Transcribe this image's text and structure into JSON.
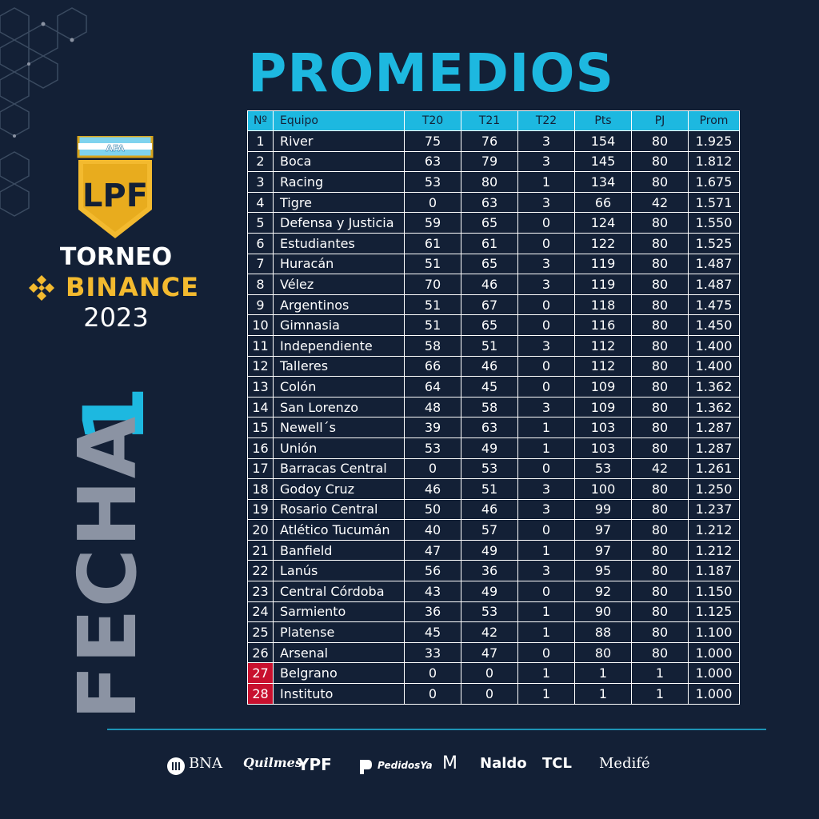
{
  "header": {
    "title": "PROMEDIOS"
  },
  "brand": {
    "afa_label": "AFA",
    "lpf_label": "LPF",
    "torneo": "TORNEO",
    "binance": "BINANCE",
    "year": "2023",
    "fecha_word": "FECHA",
    "fecha_number": "1",
    "colors": {
      "accent": "#1db8e0",
      "gold": "#f3ba2f",
      "background": "#132036",
      "relegation": "#c8102e",
      "muted": "#8b93a3"
    }
  },
  "table": {
    "columns": [
      "Nº",
      "Equipo",
      "T20",
      "T21",
      "T22",
      "Pts",
      "PJ",
      "Prom"
    ],
    "rows": [
      {
        "pos": "1",
        "team": "River",
        "t20": "75",
        "t21": "76",
        "t22": "3",
        "pts": "154",
        "pj": "80",
        "prom": "1.925",
        "highlight": false
      },
      {
        "pos": "2",
        "team": "Boca",
        "t20": "63",
        "t21": "79",
        "t22": "3",
        "pts": "145",
        "pj": "80",
        "prom": "1.812",
        "highlight": false
      },
      {
        "pos": "3",
        "team": "Racing",
        "t20": "53",
        "t21": "80",
        "t22": "1",
        "pts": "134",
        "pj": "80",
        "prom": "1.675",
        "highlight": false
      },
      {
        "pos": "4",
        "team": "Tigre",
        "t20": "0",
        "t21": "63",
        "t22": "3",
        "pts": "66",
        "pj": "42",
        "prom": "1.571",
        "highlight": false
      },
      {
        "pos": "5",
        "team": "Defensa y Justicia",
        "t20": "59",
        "t21": "65",
        "t22": "0",
        "pts": "124",
        "pj": "80",
        "prom": "1.550",
        "highlight": false
      },
      {
        "pos": "6",
        "team": "Estudiantes",
        "t20": "61",
        "t21": "61",
        "t22": "0",
        "pts": "122",
        "pj": "80",
        "prom": "1.525",
        "highlight": false
      },
      {
        "pos": "7",
        "team": "Huracán",
        "t20": "51",
        "t21": "65",
        "t22": "3",
        "pts": "119",
        "pj": "80",
        "prom": "1.487",
        "highlight": false
      },
      {
        "pos": "8",
        "team": "Vélez",
        "t20": "70",
        "t21": "46",
        "t22": "3",
        "pts": "119",
        "pj": "80",
        "prom": "1.487",
        "highlight": false
      },
      {
        "pos": "9",
        "team": "Argentinos",
        "t20": "51",
        "t21": "67",
        "t22": "0",
        "pts": "118",
        "pj": "80",
        "prom": "1.475",
        "highlight": false
      },
      {
        "pos": "10",
        "team": "Gimnasia",
        "t20": "51",
        "t21": "65",
        "t22": "0",
        "pts": "116",
        "pj": "80",
        "prom": "1.450",
        "highlight": false
      },
      {
        "pos": "11",
        "team": "Independiente",
        "t20": "58",
        "t21": "51",
        "t22": "3",
        "pts": "112",
        "pj": "80",
        "prom": "1.400",
        "highlight": false
      },
      {
        "pos": "12",
        "team": "Talleres",
        "t20": "66",
        "t21": "46",
        "t22": "0",
        "pts": "112",
        "pj": "80",
        "prom": "1.400",
        "highlight": false
      },
      {
        "pos": "13",
        "team": "Colón",
        "t20": "64",
        "t21": "45",
        "t22": "0",
        "pts": "109",
        "pj": "80",
        "prom": "1.362",
        "highlight": false
      },
      {
        "pos": "14",
        "team": "San Lorenzo",
        "t20": "48",
        "t21": "58",
        "t22": "3",
        "pts": "109",
        "pj": "80",
        "prom": "1.362",
        "highlight": false
      },
      {
        "pos": "15",
        "team": "Newell´s",
        "t20": "39",
        "t21": "63",
        "t22": "1",
        "pts": "103",
        "pj": "80",
        "prom": "1.287",
        "highlight": false
      },
      {
        "pos": "16",
        "team": "Unión",
        "t20": "53",
        "t21": "49",
        "t22": "1",
        "pts": "103",
        "pj": "80",
        "prom": "1.287",
        "highlight": false
      },
      {
        "pos": "17",
        "team": "Barracas Central",
        "t20": "0",
        "t21": "53",
        "t22": "0",
        "pts": "53",
        "pj": "42",
        "prom": "1.261",
        "highlight": false
      },
      {
        "pos": "18",
        "team": "Godoy Cruz",
        "t20": "46",
        "t21": "51",
        "t22": "3",
        "pts": "100",
        "pj": "80",
        "prom": "1.250",
        "highlight": false
      },
      {
        "pos": "19",
        "team": "Rosario Central",
        "t20": "50",
        "t21": "46",
        "t22": "3",
        "pts": "99",
        "pj": "80",
        "prom": "1.237",
        "highlight": false
      },
      {
        "pos": "20",
        "team": "Atlético Tucumán",
        "t20": "40",
        "t21": "57",
        "t22": "0",
        "pts": "97",
        "pj": "80",
        "prom": "1.212",
        "highlight": false
      },
      {
        "pos": "21",
        "team": "Banfield",
        "t20": "47",
        "t21": "49",
        "t22": "1",
        "pts": "97",
        "pj": "80",
        "prom": "1.212",
        "highlight": false
      },
      {
        "pos": "22",
        "team": "Lanús",
        "t20": "56",
        "t21": "36",
        "t22": "3",
        "pts": "95",
        "pj": "80",
        "prom": "1.187",
        "highlight": false
      },
      {
        "pos": "23",
        "team": "Central Córdoba",
        "t20": "43",
        "t21": "49",
        "t22": "0",
        "pts": "92",
        "pj": "80",
        "prom": "1.150",
        "highlight": false
      },
      {
        "pos": "24",
        "team": "Sarmiento",
        "t20": "36",
        "t21": "53",
        "t22": "1",
        "pts": "90",
        "pj": "80",
        "prom": "1.125",
        "highlight": false
      },
      {
        "pos": "25",
        "team": "Platense",
        "t20": "45",
        "t21": "42",
        "t22": "1",
        "pts": "88",
        "pj": "80",
        "prom": "1.100",
        "highlight": false
      },
      {
        "pos": "26",
        "team": "Arsenal",
        "t20": "33",
        "t21": "47",
        "t22": "0",
        "pts": "80",
        "pj": "80",
        "prom": "1.000",
        "highlight": false
      },
      {
        "pos": "27",
        "team": "Belgrano",
        "t20": "0",
        "t21": "0",
        "t22": "1",
        "pts": "1",
        "pj": "1",
        "prom": "1.000",
        "highlight": true
      },
      {
        "pos": "28",
        "team": "Instituto",
        "t20": "0",
        "t21": "0",
        "t22": "1",
        "pts": "1",
        "pj": "1",
        "prom": "1.000",
        "highlight": true
      }
    ]
  },
  "sponsors": [
    "BNA",
    "Quilmes",
    "YPF",
    "PedidosYa",
    "M",
    "Naldo",
    "TCL",
    "Medifé"
  ]
}
